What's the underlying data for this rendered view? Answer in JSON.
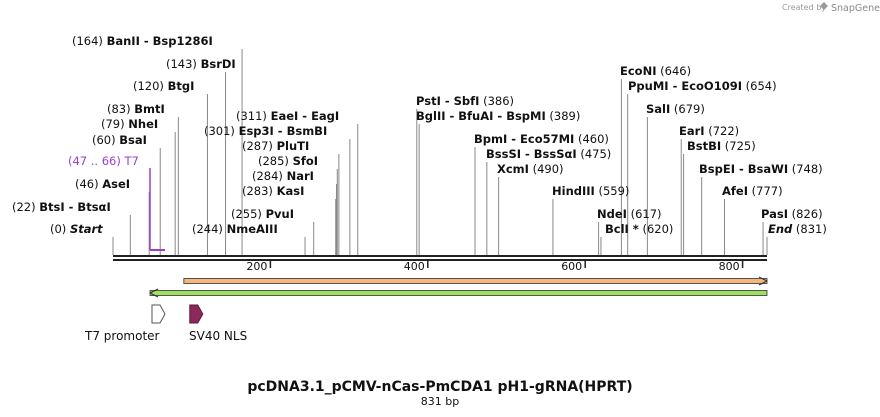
{
  "credit": {
    "prefix": "Created by",
    "brand": "SnapGene"
  },
  "title": "pcDNA3.1_pCMV-nCas-PmCDA1 pH1-gRNA(HPRT)",
  "length_label": "831 bp",
  "ruler": {
    "ticks": [
      {
        "value": 200,
        "label": "200"
      },
      {
        "value": 400,
        "label": "400"
      },
      {
        "value": 600,
        "label": "600"
      },
      {
        "value": 800,
        "label": "800"
      }
    ]
  },
  "sites": [
    {
      "pos": 0,
      "pos_label": "(0)",
      "name": "Start",
      "style": "italic"
    },
    {
      "pos": 22,
      "pos_label": "(22)",
      "name": "BtsI  -  BtsαI"
    },
    {
      "pos": 46,
      "pos_label": "(46)",
      "name": "AseI"
    },
    {
      "pos": 60,
      "pos_label": "(60)",
      "name": "BsaI"
    },
    {
      "pos": 79,
      "pos_label": "(79)",
      "name": "NheI"
    },
    {
      "pos": 83,
      "pos_label": "(83)",
      "name": "BmtI"
    },
    {
      "pos": 120,
      "pos_label": "(120)",
      "name": "BtgI"
    },
    {
      "pos": 143,
      "pos_label": "(143)",
      "name": "BsrDI"
    },
    {
      "pos": 164,
      "pos_label": "(164)",
      "name": "BanII  -  Bsp1286I"
    },
    {
      "pos": 244,
      "pos_label": "(244)",
      "name": "NmeAIII"
    },
    {
      "pos": 255,
      "pos_label": "(255)",
      "name": "PvuI"
    },
    {
      "pos": 283,
      "pos_label": "(283)",
      "name": "KasI"
    },
    {
      "pos": 284,
      "pos_label": "(284)",
      "name": "NarI"
    },
    {
      "pos": 285,
      "pos_label": "(285)",
      "name": "SfoI"
    },
    {
      "pos": 287,
      "pos_label": "(287)",
      "name": "PluTI"
    },
    {
      "pos": 301,
      "pos_label": "(301)",
      "name": "Esp3I  -  BsmBI"
    },
    {
      "pos": 311,
      "pos_label": "(311)",
      "name": "EaeI  -  EagI"
    },
    {
      "pos": 386,
      "pos_label": "(386)",
      "name": "PstI  -  SbfI"
    },
    {
      "pos": 389,
      "pos_label": "(389)",
      "name": "BglII  -  BfuAI  -  BspMI"
    },
    {
      "pos": 460,
      "pos_label": "(460)",
      "name": "BpmI  -  Eco57MI"
    },
    {
      "pos": 475,
      "pos_label": "(475)",
      "name": "BssSI  -  BssSαI"
    },
    {
      "pos": 490,
      "pos_label": "(490)",
      "name": "XcmI"
    },
    {
      "pos": 559,
      "pos_label": "(559)",
      "name": "HindIII"
    },
    {
      "pos": 617,
      "pos_label": "(617)",
      "name": "NdeI"
    },
    {
      "pos": 620,
      "pos_label": "(620)",
      "name": "BclI *"
    },
    {
      "pos": 646,
      "pos_label": "(646)",
      "name": "EcoNI"
    },
    {
      "pos": 654,
      "pos_label": "(654)",
      "name": "PpuMI  -  EcoO109I"
    },
    {
      "pos": 679,
      "pos_label": "(679)",
      "name": "SalI"
    },
    {
      "pos": 722,
      "pos_label": "(722)",
      "name": "EarI"
    },
    {
      "pos": 725,
      "pos_label": "(725)",
      "name": "BstBI"
    },
    {
      "pos": 748,
      "pos_label": "(748)",
      "name": "BspEI  -  BsaWI"
    },
    {
      "pos": 777,
      "pos_label": "(777)",
      "name": "AfeI"
    },
    {
      "pos": 826,
      "pos_label": "(826)",
      "name": "PasI"
    },
    {
      "pos": 831,
      "pos_label": "(831)",
      "name": "End",
      "style": "italic"
    }
  ],
  "primer": {
    "start": 47,
    "end": 66,
    "pos_label": "(47 .. 66)",
    "name": "T7",
    "color": "#9b3fd0"
  },
  "features": [
    {
      "name": "T7 promoter",
      "start": 47,
      "end": 66,
      "color": "#ffffff",
      "stroke": "#555555"
    },
    {
      "name": "SV40 NLS",
      "start": 95,
      "end": 116,
      "color": "#8b2a5a",
      "stroke": "#5a1a3a"
    }
  ],
  "orf_arrows": [
    {
      "start": 90,
      "end": 831,
      "direction": "forward",
      "color": "#f4b67a"
    },
    {
      "start": 47,
      "end": 831,
      "direction": "reverse",
      "color": "#9fe060"
    }
  ]
}
